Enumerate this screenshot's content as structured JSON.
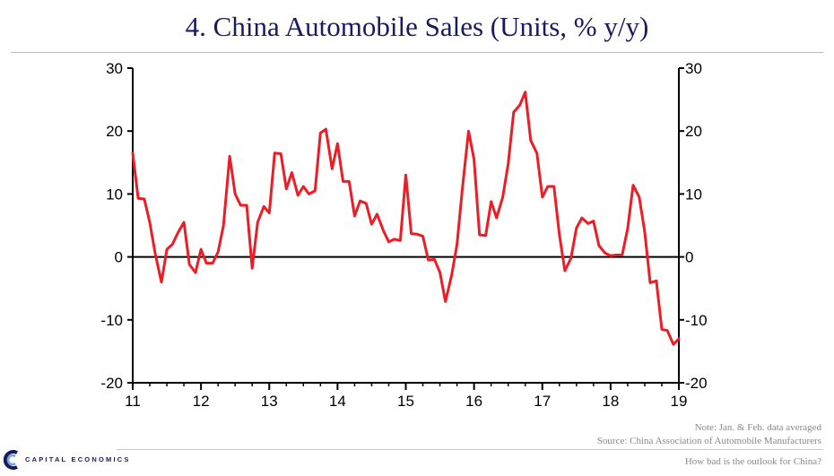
{
  "header": {
    "title": "4. China Automobile Sales (Units, % y/y)"
  },
  "footer": {
    "note": "Note: Jan. & Feb. data averaged",
    "source": "Source: China Association of Automobile Manufacturers",
    "slide_caption": "How bad is the outlook for China?",
    "logo_text": "CAPITAL ECONOMICS"
  },
  "colors": {
    "series": "#ee1c25",
    "title": "#1a1a5e",
    "axis": "#000000"
  },
  "chart_data": {
    "type": "line",
    "title": "4. China Automobile Sales (Units, % y/y)",
    "xlabel": "",
    "ylabel": "",
    "xlim": [
      2011,
      2019
    ],
    "ylim": [
      -20,
      30
    ],
    "x_ticks": [
      11,
      12,
      13,
      14,
      15,
      16,
      17,
      18,
      19
    ],
    "y_ticks": [
      30,
      20,
      10,
      0,
      -10,
      -20
    ],
    "y_axis_right": true,
    "zero_line": true,
    "grid": false,
    "legend": "none",
    "series": [
      {
        "color": "#ee1c25",
        "points": [
          [
            2011.0,
            16.5
          ],
          [
            2011.08,
            9.3
          ],
          [
            2011.17,
            9.2
          ],
          [
            2011.25,
            5.5
          ],
          [
            2011.33,
            0.5
          ],
          [
            2011.42,
            -4.0
          ],
          [
            2011.5,
            1.2
          ],
          [
            2011.58,
            2.0
          ],
          [
            2011.67,
            4.0
          ],
          [
            2011.75,
            5.5
          ],
          [
            2011.83,
            -1.2
          ],
          [
            2011.92,
            -2.5
          ],
          [
            2012.0,
            1.2
          ],
          [
            2012.08,
            -1.0
          ],
          [
            2012.17,
            -1.0
          ],
          [
            2012.25,
            0.8
          ],
          [
            2012.33,
            5.0
          ],
          [
            2012.42,
            16.0
          ],
          [
            2012.5,
            10.0
          ],
          [
            2012.58,
            8.2
          ],
          [
            2012.67,
            8.2
          ],
          [
            2012.75,
            -1.8
          ],
          [
            2012.83,
            5.5
          ],
          [
            2012.92,
            8.0
          ],
          [
            2013.0,
            7.0
          ],
          [
            2013.08,
            16.5
          ],
          [
            2013.17,
            16.4
          ],
          [
            2013.25,
            10.8
          ],
          [
            2013.33,
            13.4
          ],
          [
            2013.42,
            9.8
          ],
          [
            2013.5,
            11.2
          ],
          [
            2013.58,
            10.0
          ],
          [
            2013.67,
            10.5
          ],
          [
            2013.75,
            19.7
          ],
          [
            2013.83,
            20.3
          ],
          [
            2013.92,
            14.0
          ],
          [
            2014.0,
            18.0
          ],
          [
            2014.08,
            12.0
          ],
          [
            2014.17,
            12.0
          ],
          [
            2014.25,
            6.5
          ],
          [
            2014.33,
            8.9
          ],
          [
            2014.42,
            8.5
          ],
          [
            2014.5,
            5.2
          ],
          [
            2014.58,
            6.8
          ],
          [
            2014.67,
            4.2
          ],
          [
            2014.75,
            2.4
          ],
          [
            2014.83,
            2.8
          ],
          [
            2014.92,
            2.6
          ],
          [
            2015.0,
            13.0
          ],
          [
            2015.08,
            3.7
          ],
          [
            2015.17,
            3.6
          ],
          [
            2015.25,
            3.3
          ],
          [
            2015.33,
            -0.5
          ],
          [
            2015.42,
            -0.4
          ],
          [
            2015.5,
            -2.5
          ],
          [
            2015.58,
            -7.1
          ],
          [
            2015.67,
            -3.0
          ],
          [
            2015.75,
            2.0
          ],
          [
            2015.83,
            11.0
          ],
          [
            2015.92,
            20.0
          ],
          [
            2016.0,
            15.5
          ],
          [
            2016.08,
            3.5
          ],
          [
            2016.17,
            3.4
          ],
          [
            2016.25,
            8.8
          ],
          [
            2016.33,
            6.2
          ],
          [
            2016.42,
            9.5
          ],
          [
            2016.5,
            14.8
          ],
          [
            2016.58,
            23.0
          ],
          [
            2016.67,
            24.1
          ],
          [
            2016.75,
            26.2
          ],
          [
            2016.83,
            18.5
          ],
          [
            2016.92,
            16.5
          ],
          [
            2017.0,
            9.5
          ],
          [
            2017.08,
            11.2
          ],
          [
            2017.17,
            11.2
          ],
          [
            2017.25,
            3.5
          ],
          [
            2017.33,
            -2.2
          ],
          [
            2017.42,
            -0.2
          ],
          [
            2017.5,
            4.6
          ],
          [
            2017.58,
            6.2
          ],
          [
            2017.67,
            5.3
          ],
          [
            2017.75,
            5.7
          ],
          [
            2017.83,
            1.8
          ],
          [
            2017.92,
            0.6
          ],
          [
            2018.0,
            0.2
          ],
          [
            2018.08,
            0.3
          ],
          [
            2018.17,
            0.3
          ],
          [
            2018.25,
            4.5
          ],
          [
            2018.33,
            11.4
          ],
          [
            2018.42,
            9.5
          ],
          [
            2018.5,
            4.0
          ],
          [
            2018.58,
            -4.1
          ],
          [
            2018.67,
            -3.8
          ],
          [
            2018.75,
            -11.5
          ],
          [
            2018.83,
            -11.7
          ],
          [
            2018.92,
            -13.9
          ],
          [
            2019.0,
            -13.0
          ]
        ]
      }
    ]
  }
}
